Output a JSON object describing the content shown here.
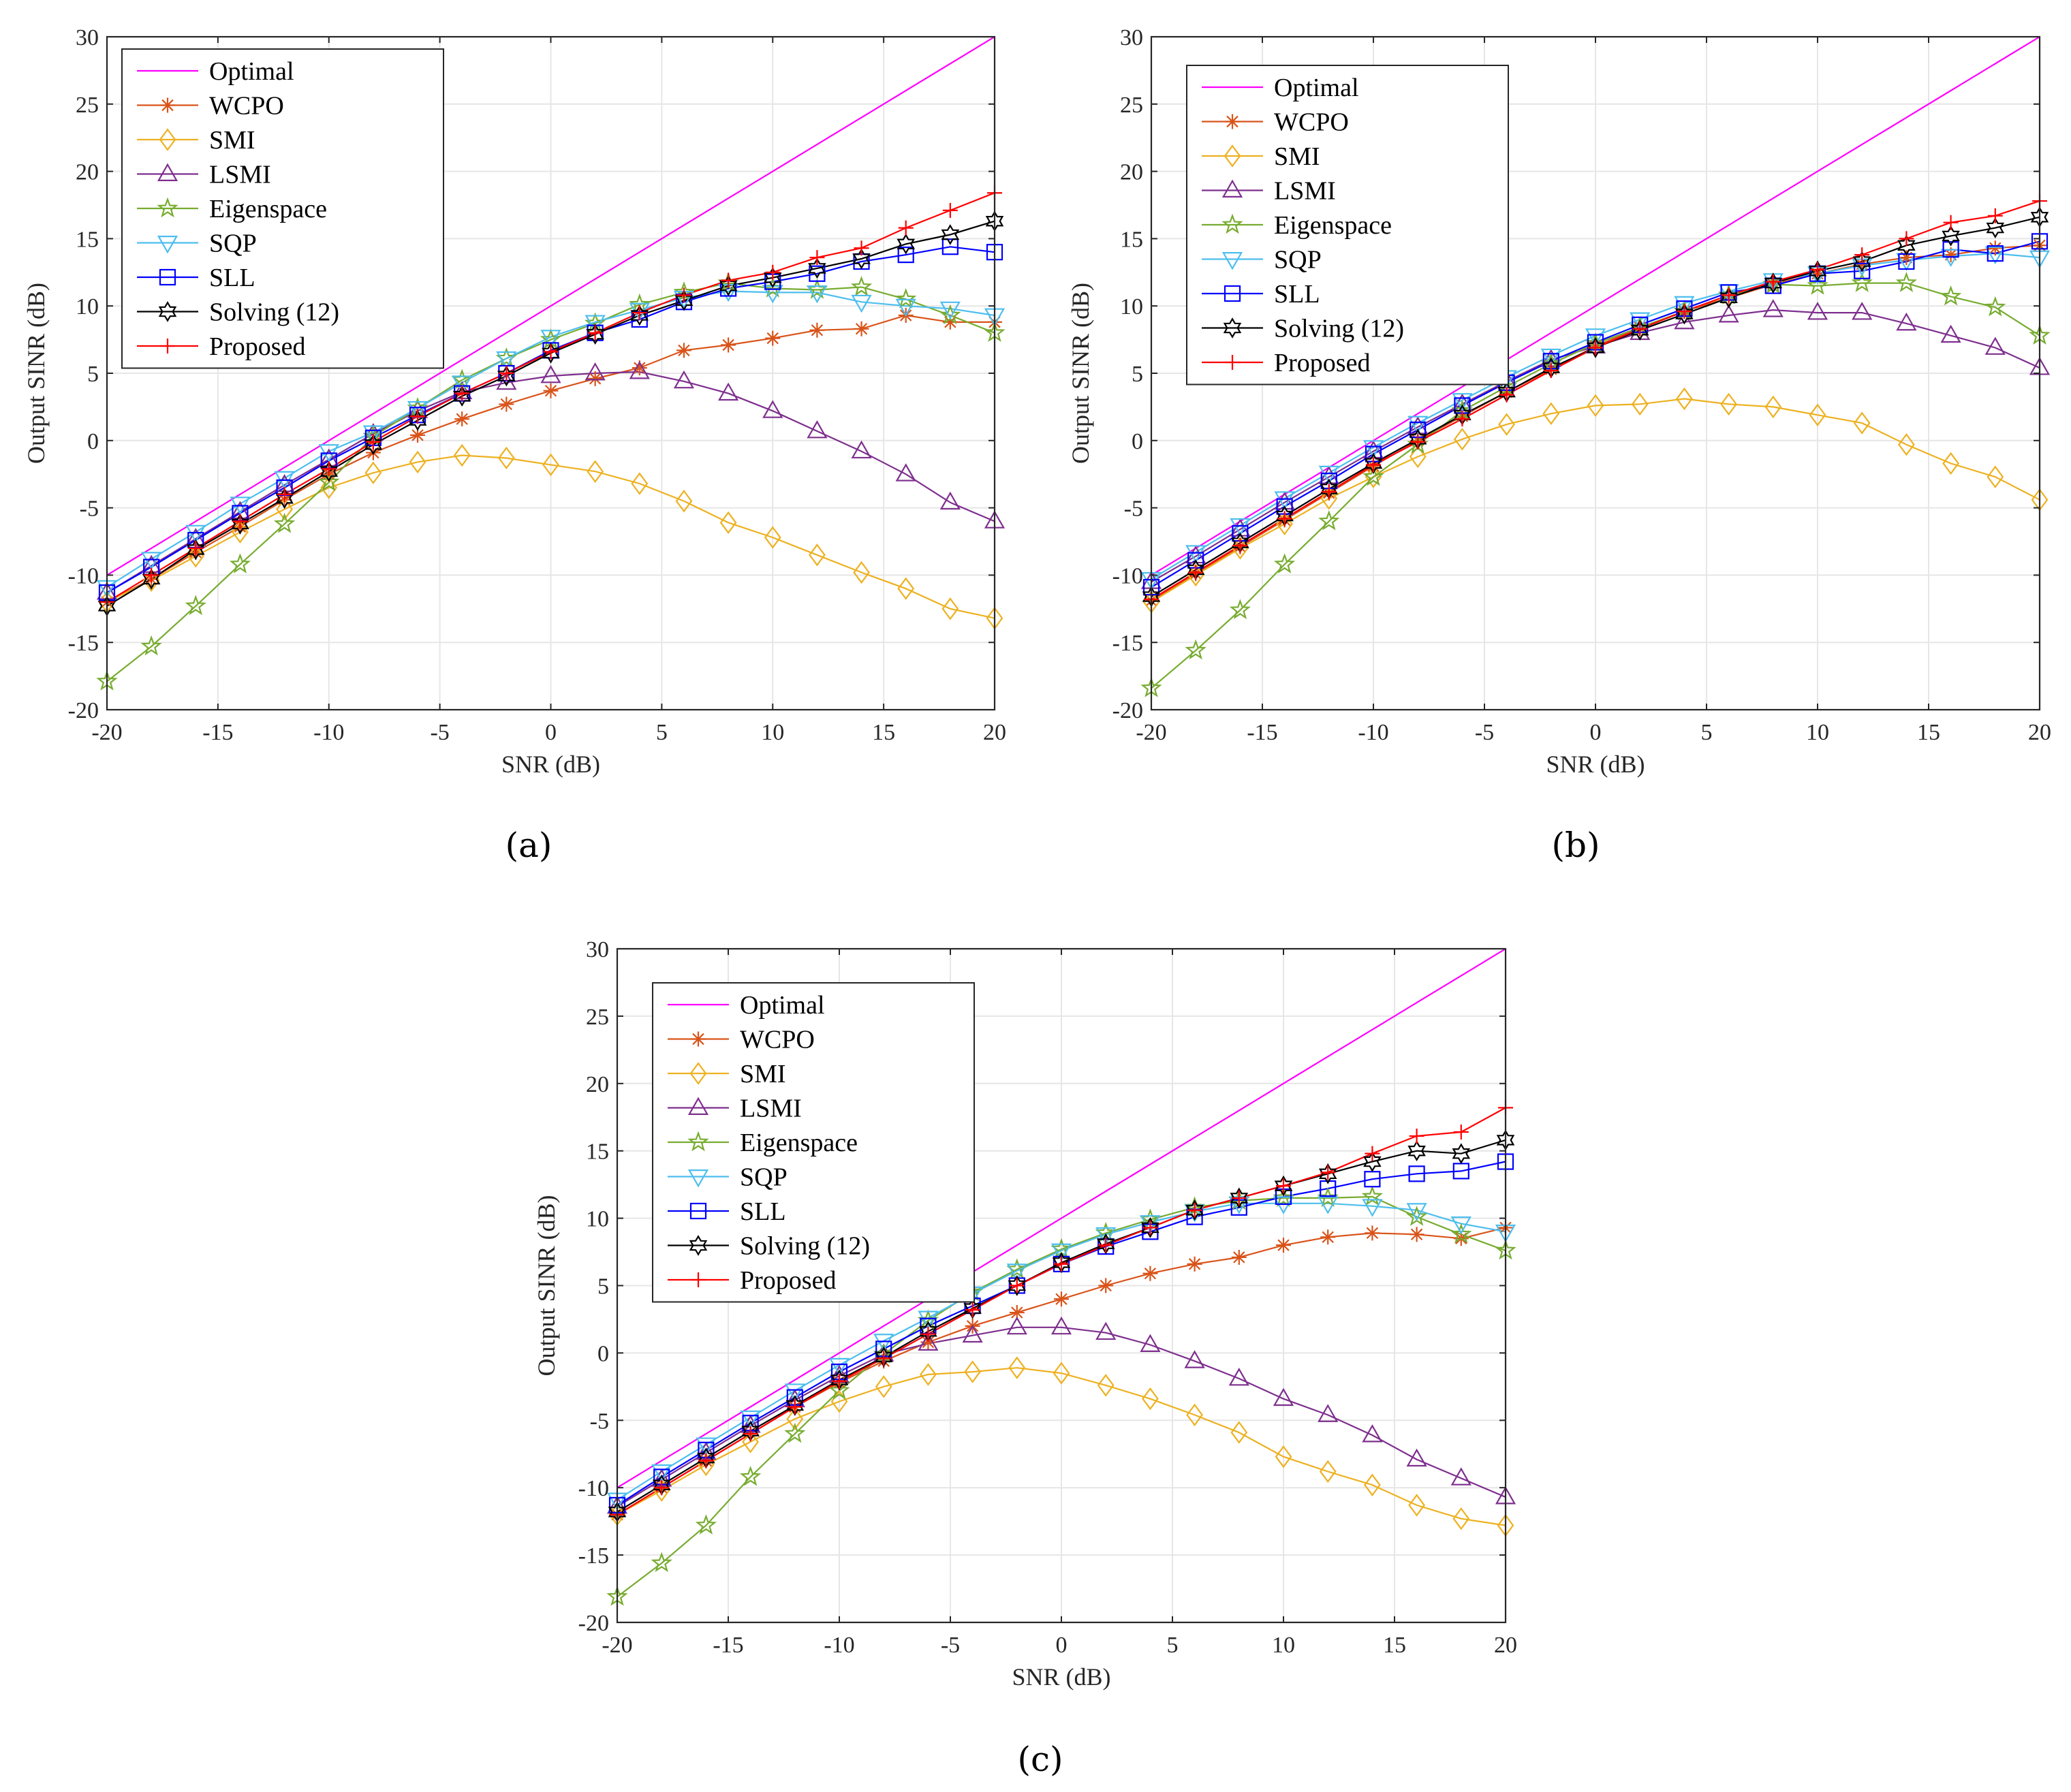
{
  "chart_data": [
    {
      "type": "line",
      "caption": "(a)",
      "xlabel": "SNR (dB)",
      "ylabel": "Output SINR (dB)",
      "xlim": [
        -20,
        20
      ],
      "ylim": [
        -20,
        30
      ],
      "xticks": [
        -20,
        -15,
        -10,
        -5,
        0,
        5,
        10,
        15,
        20
      ],
      "xtick_labels": [
        "-20",
        "-15",
        "-10",
        "-5",
        "0",
        "5",
        "10",
        "15",
        "20"
      ],
      "yticks": [
        -20,
        -15,
        -10,
        -5,
        0,
        5,
        10,
        15,
        20,
        25,
        30
      ],
      "ytick_labels": [
        "-20",
        "-15",
        "-10",
        "-5",
        "0",
        "5",
        "10",
        "15",
        "20",
        "25",
        "30"
      ],
      "grid": true,
      "legend_position": "top-left",
      "x": [
        -20,
        -18,
        -16,
        -14,
        -12,
        -10,
        -8,
        -6,
        -4,
        -2,
        0,
        2,
        4,
        6,
        8,
        10,
        12,
        14,
        16,
        18,
        20
      ],
      "series": [
        {
          "name": "Optimal",
          "marker": "none",
          "values": [
            -10,
            -8,
            -6,
            -4,
            -2,
            0,
            2,
            4,
            6,
            8,
            10,
            12,
            14,
            16,
            18,
            20,
            22,
            24,
            26,
            28,
            30
          ]
        },
        {
          "name": "WCPO",
          "marker": "asterisk",
          "values": [
            -12,
            -10.3,
            -8.3,
            -6.4,
            -4.4,
            -2.5,
            -0.9,
            0.4,
            1.6,
            2.7,
            3.7,
            4.6,
            5.4,
            6.7,
            7.1,
            7.6,
            8.2,
            8.3,
            9.3,
            8.8,
            8.8
          ]
        },
        {
          "name": "SMI",
          "marker": "diamond",
          "values": [
            -12,
            -10.4,
            -8.6,
            -6.8,
            -5.1,
            -3.5,
            -2.4,
            -1.6,
            -1.1,
            -1.3,
            -1.8,
            -2.3,
            -3.2,
            -4.5,
            -6.1,
            -7.2,
            -8.5,
            -9.8,
            -11,
            -12.5,
            -13.2
          ]
        },
        {
          "name": "LSMI",
          "marker": "triangle-up",
          "values": [
            -11.3,
            -9.3,
            -7.3,
            -5.3,
            -3.3,
            -1.4,
            0.5,
            2.2,
            3.6,
            4.3,
            4.8,
            5.0,
            5.1,
            4.4,
            3.5,
            2.2,
            0.7,
            -0.8,
            -2.5,
            -4.6,
            -6.0
          ]
        },
        {
          "name": "Eigenspace",
          "marker": "pentagram",
          "values": [
            -17.9,
            -15.3,
            -12.3,
            -9.2,
            -6.2,
            -3.1,
            0.3,
            2.4,
            4.5,
            6.1,
            7.5,
            8.7,
            10.1,
            11.0,
            11.7,
            11.3,
            11.2,
            11.4,
            10.5,
            9.3,
            8.0
          ]
        },
        {
          "name": "SQP",
          "marker": "triangle-down",
          "values": [
            -10.9,
            -8.8,
            -6.8,
            -4.7,
            -2.8,
            -0.8,
            0.6,
            2.4,
            4.3,
            6.1,
            7.7,
            8.8,
            9.7,
            10.6,
            11.1,
            11.0,
            11.0,
            10.3,
            10.0,
            9.8,
            9.3
          ]
        },
        {
          "name": "SLL",
          "marker": "square",
          "values": [
            -11.3,
            -9.4,
            -7.4,
            -5.4,
            -3.5,
            -1.5,
            0.2,
            1.9,
            3.5,
            5.0,
            6.7,
            8.0,
            9.0,
            10.3,
            11.3,
            11.8,
            12.4,
            13.3,
            13.8,
            14.4,
            14.0
          ]
        },
        {
          "name": "Solving (12)",
          "marker": "hexagram",
          "values": [
            -12.3,
            -10.3,
            -8.1,
            -6.2,
            -4.3,
            -2.3,
            -0.3,
            1.5,
            3.3,
            4.8,
            6.5,
            7.9,
            9.3,
            10.4,
            11.5,
            12.1,
            12.8,
            13.5,
            14.6,
            15.3,
            16.3
          ]
        },
        {
          "name": "Proposed",
          "marker": "plus",
          "values": [
            -12,
            -10,
            -8,
            -6,
            -4,
            -2.1,
            -0.1,
            1.8,
            3.5,
            5.0,
            6.6,
            8.0,
            9.5,
            10.8,
            11.9,
            12.5,
            13.6,
            14.3,
            15.8,
            17.1,
            18.4
          ]
        }
      ]
    },
    {
      "type": "line",
      "caption": "(b)",
      "xlabel": "SNR (dB)",
      "ylabel": "Output SINR (dB)",
      "xlim": [
        -20,
        20
      ],
      "ylim": [
        -20,
        30
      ],
      "xticks": [
        -20,
        -15,
        -10,
        -5,
        0,
        5,
        10,
        15,
        20
      ],
      "xtick_labels": [
        "-20",
        "-15",
        "-10",
        "-5",
        "0",
        "5",
        "10",
        "15",
        "20"
      ],
      "yticks": [
        -20,
        -15,
        -10,
        -5,
        0,
        5,
        10,
        15,
        20,
        25,
        30
      ],
      "ytick_labels": [
        "-20",
        "-15",
        "-10",
        "-5",
        "0",
        "5",
        "10",
        "15",
        "20",
        "25",
        "30"
      ],
      "grid": true,
      "legend_position": "top-left",
      "x": [
        -20,
        -18,
        -16,
        -14,
        -12,
        -10,
        -8,
        -6,
        -4,
        -2,
        0,
        2,
        4,
        6,
        8,
        10,
        12,
        14,
        16,
        18,
        20
      ],
      "series": [
        {
          "name": "Optimal",
          "marker": "none",
          "values": [
            -10,
            -8,
            -6,
            -4,
            -2,
            0,
            2,
            4,
            6,
            8,
            10,
            12,
            14,
            16,
            18,
            20,
            22,
            24,
            26,
            28,
            30
          ]
        },
        {
          "name": "WCPO",
          "marker": "asterisk",
          "values": [
            -11.9,
            -9.9,
            -7.9,
            -5.9,
            -3.9,
            -1.9,
            0.0,
            1.8,
            3.6,
            5.3,
            7.0,
            8.4,
            9.6,
            10.6,
            11.6,
            12.4,
            13.1,
            13.6,
            13.8,
            14.3,
            14.5
          ]
        },
        {
          "name": "SMI",
          "marker": "diamond",
          "values": [
            -12,
            -10,
            -8,
            -6.2,
            -4.3,
            -2.7,
            -1.2,
            0.1,
            1.2,
            2.0,
            2.6,
            2.7,
            3.1,
            2.7,
            2.5,
            1.9,
            1.3,
            -0.3,
            -1.7,
            -2.7,
            -4.4
          ]
        },
        {
          "name": "LSMI",
          "marker": "triangle-up",
          "values": [
            -10.5,
            -8.6,
            -6.6,
            -4.6,
            -2.7,
            -0.8,
            1.0,
            2.7,
            4.4,
            6.0,
            7.0,
            8.0,
            8.8,
            9.3,
            9.7,
            9.5,
            9.5,
            8.7,
            7.8,
            6.9,
            5.4
          ]
        },
        {
          "name": "Eigenspace",
          "marker": "pentagram",
          "values": [
            -18.4,
            -15.6,
            -12.6,
            -9.2,
            -6.0,
            -2.7,
            -0.3,
            2.2,
            4.0,
            5.7,
            7.2,
            8.4,
            9.6,
            10.8,
            11.6,
            11.5,
            11.7,
            11.7,
            10.7,
            9.9,
            7.8
          ]
        },
        {
          "name": "SQP",
          "marker": "triangle-down",
          "values": [
            -10.3,
            -8.3,
            -6.3,
            -4.3,
            -2.4,
            -0.5,
            1.3,
            3.0,
            4.7,
            6.3,
            7.8,
            9.0,
            10.2,
            11.1,
            11.9,
            12.4,
            13.0,
            13.4,
            13.7,
            13.9,
            13.6
          ]
        },
        {
          "name": "SLL",
          "marker": "square",
          "values": [
            -10.9,
            -8.9,
            -6.9,
            -4.9,
            -3.0,
            -1.0,
            0.8,
            2.6,
            4.3,
            5.9,
            7.3,
            8.6,
            9.8,
            11.0,
            11.5,
            12.4,
            12.6,
            13.3,
            14.2,
            13.9,
            14.8
          ]
        },
        {
          "name": "Solving (12)",
          "marker": "hexagram",
          "values": [
            -11.6,
            -9.6,
            -7.6,
            -5.6,
            -3.6,
            -1.7,
            0.1,
            1.9,
            3.6,
            5.4,
            6.9,
            8.2,
            9.4,
            10.6,
            11.7,
            12.6,
            13.3,
            14.5,
            15.2,
            15.8,
            16.6
          ]
        },
        {
          "name": "Proposed",
          "marker": "plus",
          "values": [
            -11.8,
            -9.8,
            -7.8,
            -5.8,
            -3.8,
            -1.8,
            -0.1,
            1.6,
            3.4,
            5.2,
            6.9,
            8.3,
            9.6,
            10.8,
            11.8,
            12.7,
            13.8,
            15.0,
            16.2,
            16.7,
            17.8
          ]
        }
      ]
    },
    {
      "type": "line",
      "caption": "(c)",
      "xlabel": "SNR (dB)",
      "ylabel": "Output SINR (dB)",
      "xlim": [
        -20,
        20
      ],
      "ylim": [
        -20,
        30
      ],
      "xticks": [
        -20,
        -15,
        -10,
        -5,
        0,
        5,
        10,
        15,
        20
      ],
      "xtick_labels": [
        "-20",
        "-15",
        "-10",
        "-5",
        "0",
        "5",
        "10",
        "15",
        "20"
      ],
      "yticks": [
        -20,
        -15,
        -10,
        -5,
        0,
        5,
        10,
        15,
        20,
        25,
        30
      ],
      "ytick_labels": [
        "-20",
        "-15",
        "-10",
        "-5",
        "0",
        "5",
        "10",
        "15",
        "20",
        "25",
        "30"
      ],
      "grid": true,
      "legend_position": "top-left",
      "x": [
        -20,
        -18,
        -16,
        -14,
        -12,
        -10,
        -8,
        -6,
        -4,
        -2,
        0,
        2,
        4,
        6,
        8,
        10,
        12,
        14,
        16,
        18,
        20
      ],
      "series": [
        {
          "name": "Optimal",
          "marker": "none",
          "values": [
            -10,
            -8,
            -6,
            -4,
            -2,
            0,
            2,
            4,
            6,
            8,
            10,
            12,
            14,
            16,
            18,
            20,
            22,
            24,
            26,
            28,
            30
          ]
        },
        {
          "name": "WCPO",
          "marker": "asterisk",
          "values": [
            -12,
            -10,
            -8,
            -6,
            -4,
            -2.2,
            -0.6,
            0.8,
            2.0,
            3.0,
            4.0,
            5.0,
            5.9,
            6.6,
            7.1,
            8.0,
            8.6,
            8.9,
            8.8,
            8.5,
            9.3
          ]
        },
        {
          "name": "SMI",
          "marker": "diamond",
          "values": [
            -12,
            -10.2,
            -8.3,
            -6.6,
            -4.9,
            -3.6,
            -2.5,
            -1.6,
            -1.4,
            -1.1,
            -1.5,
            -2.4,
            -3.4,
            -4.6,
            -5.9,
            -7.7,
            -8.8,
            -9.8,
            -11.3,
            -12.3,
            -12.8
          ]
        },
        {
          "name": "LSMI",
          "marker": "triangle-up",
          "values": [
            -11.4,
            -9.4,
            -7.4,
            -5.4,
            -3.5,
            -1.7,
            -0.1,
            0.7,
            1.3,
            1.9,
            1.9,
            1.5,
            0.6,
            -0.6,
            -1.9,
            -3.4,
            -4.6,
            -6.1,
            -7.9,
            -9.3,
            -10.7
          ]
        },
        {
          "name": "Eigenspace",
          "marker": "pentagram",
          "values": [
            -18.1,
            -15.6,
            -12.8,
            -9.2,
            -6.0,
            -2.8,
            -0.1,
            2.4,
            4.5,
            6.2,
            7.7,
            8.9,
            9.9,
            10.8,
            11.3,
            11.5,
            11.5,
            11.6,
            10.1,
            8.8,
            7.6
          ]
        },
        {
          "name": "SQP",
          "marker": "triangle-down",
          "values": [
            -10.9,
            -8.8,
            -6.8,
            -4.8,
            -2.8,
            -0.9,
            0.9,
            2.6,
            4.4,
            6.1,
            7.6,
            8.8,
            9.7,
            10.5,
            11.1,
            11.1,
            11.1,
            10.9,
            10.6,
            9.6,
            9.0
          ]
        },
        {
          "name": "SLL",
          "marker": "square",
          "values": [
            -11.3,
            -9.2,
            -7.2,
            -5.2,
            -3.3,
            -1.4,
            0.3,
            2.0,
            3.5,
            5.0,
            6.6,
            7.9,
            9.0,
            10.1,
            10.8,
            11.6,
            12.2,
            12.9,
            13.3,
            13.5,
            14.2
          ]
        },
        {
          "name": "Solving (12)",
          "marker": "hexagram",
          "values": [
            -11.8,
            -9.8,
            -7.8,
            -5.8,
            -3.9,
            -2.0,
            -0.3,
            1.6,
            3.3,
            5.0,
            6.7,
            8.1,
            9.3,
            10.6,
            11.5,
            12.4,
            13.3,
            14.2,
            15.0,
            14.8,
            15.8
          ]
        },
        {
          "name": "Proposed",
          "marker": "plus",
          "values": [
            -12,
            -10,
            -8,
            -6,
            -4,
            -2.1,
            -0.4,
            1.4,
            3.2,
            5.0,
            6.6,
            8.0,
            9.3,
            10.6,
            11.5,
            12.4,
            13.4,
            14.8,
            16.1,
            16.4,
            18.2
          ]
        }
      ]
    }
  ],
  "colors": {
    "Optimal": "#ff00ff",
    "WCPO": "#d95319",
    "SMI": "#edb120",
    "LSMI": "#7e2f8e",
    "Eigenspace": "#77ac30",
    "SQP": "#4dbeee",
    "SLL": "#0000ff",
    "Solving (12)": "#000000",
    "Proposed": "#ff0000",
    "grid": "#e6e6e6",
    "axis": "#262626"
  }
}
